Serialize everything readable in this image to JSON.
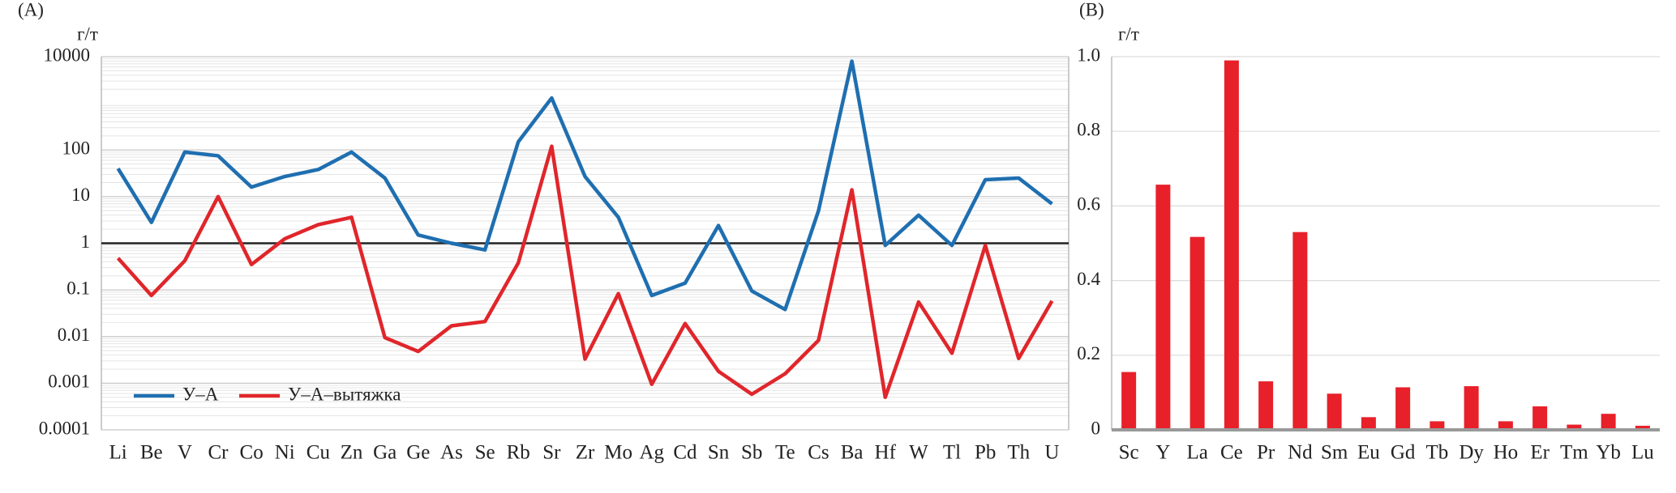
{
  "chart_data": [
    {
      "type": "line",
      "panel_label": "(A)",
      "y_label": "г/т",
      "log_scale": true,
      "grid": true,
      "legend": "lower left",
      "hline": 1,
      "categories": [
        "Li",
        "Be",
        "V",
        "Cr",
        "Co",
        "Ni",
        "Cu",
        "Zn",
        "Ga",
        "Ge",
        "As",
        "Se",
        "Rb",
        "Sr",
        "Zr",
        "Mo",
        "Ag",
        "Cd",
        "Sn",
        "Sb",
        "Te",
        "Cs",
        "Ba",
        "Hf",
        "W",
        "Tl",
        "Pb",
        "Th",
        "U"
      ],
      "series": [
        {
          "name": "У–А",
          "color": "#1f6fb0",
          "values": [
            40,
            2.8,
            90,
            75,
            16,
            27,
            38,
            90,
            25,
            1.5,
            1,
            0.72,
            150,
            1300,
            27,
            3.6,
            0.076,
            0.14,
            2.4,
            0.095,
            0.038,
            5,
            8000,
            0.9,
            4,
            0.9,
            23,
            25,
            7
          ]
        },
        {
          "name": "У–А–вытяжка",
          "color": "#e0262b",
          "values": [
            0.48,
            0.076,
            0.42,
            10,
            0.35,
            1.25,
            2.5,
            3.6,
            0.0095,
            0.0048,
            0.017,
            0.021,
            0.38,
            120,
            0.0033,
            0.083,
            0.00095,
            0.019,
            0.0018,
            0.00058,
            0.0016,
            0.0083,
            14,
            0.0005,
            0.055,
            0.0044,
            0.9,
            0.0034,
            0.058
          ]
        }
      ],
      "ylim": [
        0.0001,
        10000
      ],
      "yticks": [
        0.0001,
        0.001,
        0.01,
        0.1,
        1,
        10,
        100,
        10000
      ]
    },
    {
      "type": "bar",
      "panel_label": "(B)",
      "y_label": "г/т",
      "grid": true,
      "color": "#e8202a",
      "categories": [
        "Sc",
        "Y",
        "La",
        "Ce",
        "Pr",
        "Nd",
        "Sm",
        "Eu",
        "Gd",
        "Tb",
        "Dy",
        "Ho",
        "Er",
        "Tm",
        "Yb",
        "Lu"
      ],
      "values": [
        0.155,
        0.657,
        0.517,
        0.99,
        0.13,
        0.53,
        0.097,
        0.034,
        0.114,
        0.023,
        0.117,
        0.023,
        0.063,
        0.014,
        0.043,
        0.011
      ],
      "ylim": [
        0,
        1
      ],
      "yticks": [
        0,
        0.2,
        0.4,
        0.6,
        0.8,
        {
          "value": 1,
          "label": "1.0"
        }
      ]
    }
  ]
}
